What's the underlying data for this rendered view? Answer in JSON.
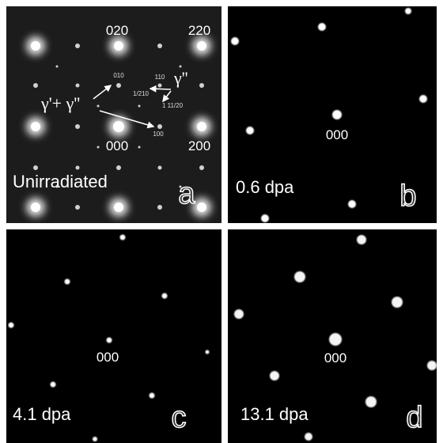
{
  "panels": [
    {
      "caption": "Unirradiated",
      "letter": "a",
      "spots": [
        "020",
        "220",
        "000",
        "200",
        "010",
        "110",
        "1/210",
        "1 11/20",
        "100"
      ],
      "annotations": [
        "γ'+ γ''",
        "γ''"
      ]
    },
    {
      "caption": "0.6 dpa",
      "letter": "b",
      "center": "000"
    },
    {
      "caption": "4.1 dpa",
      "letter": "c",
      "center": "000"
    },
    {
      "caption": "13.1 dpa",
      "letter": "d",
      "center": "000"
    }
  ]
}
